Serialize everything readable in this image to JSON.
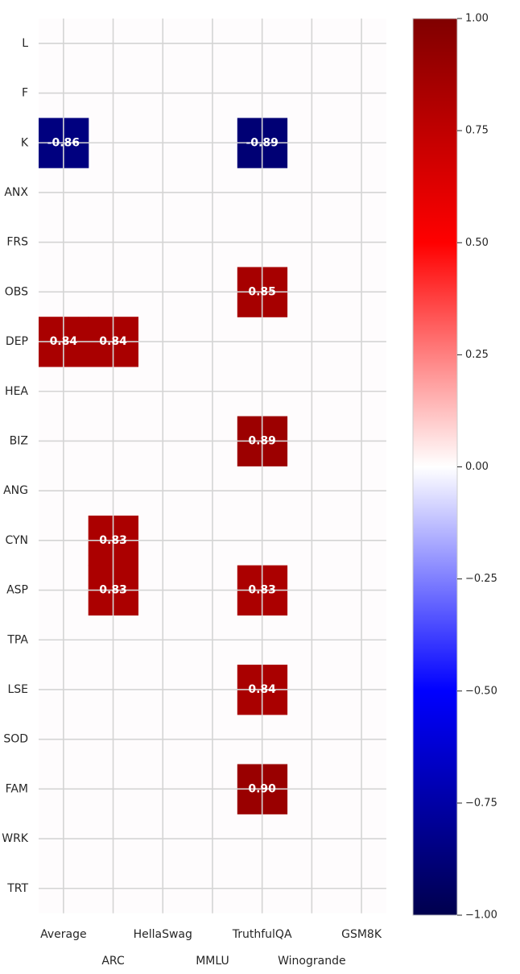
{
  "chart_data": {
    "type": "heatmap",
    "title": "",
    "xlabel": "",
    "ylabel": "",
    "x_categories": [
      "Average",
      "ARC",
      "HellaSwag",
      "MMLU",
      "TruthfulQA",
      "Winogrande",
      "GSM8K"
    ],
    "y_categories": [
      "L",
      "F",
      "K",
      "ANX",
      "FRS",
      "OBS",
      "DEP",
      "HEA",
      "BIZ",
      "ANG",
      "CYN",
      "ASP",
      "TPA",
      "LSE",
      "SOD",
      "FAM",
      "WRK",
      "TRT"
    ],
    "cells": [
      {
        "x": "Average",
        "y": "K",
        "value": -0.86,
        "label": "-0.86"
      },
      {
        "x": "TruthfulQA",
        "y": "K",
        "value": -0.89,
        "label": "-0.89"
      },
      {
        "x": "TruthfulQA",
        "y": "OBS",
        "value": 0.85,
        "label": "0.85"
      },
      {
        "x": "Average",
        "y": "DEP",
        "value": 0.84,
        "label": "0.84"
      },
      {
        "x": "ARC",
        "y": "DEP",
        "value": 0.84,
        "label": "0.84"
      },
      {
        "x": "TruthfulQA",
        "y": "BIZ",
        "value": 0.89,
        "label": "0.89"
      },
      {
        "x": "ARC",
        "y": "CYN",
        "value": 0.83,
        "label": "0.83"
      },
      {
        "x": "ARC",
        "y": "ASP",
        "value": 0.83,
        "label": "0.83"
      },
      {
        "x": "TruthfulQA",
        "y": "ASP",
        "value": 0.83,
        "label": "0.83"
      },
      {
        "x": "TruthfulQA",
        "y": "LSE",
        "value": 0.84,
        "label": "0.84"
      },
      {
        "x": "TruthfulQA",
        "y": "FAM",
        "value": 0.9,
        "label": "0.90"
      }
    ],
    "colorbar": {
      "colormap": "seismic",
      "vmin": -1.0,
      "vmax": 1.0,
      "ticks": [
        1.0,
        0.75,
        0.5,
        0.25,
        0.0,
        -0.25,
        -0.5,
        -0.75,
        -1.0
      ],
      "tick_labels": [
        "1.00",
        "0.75",
        "0.50",
        "0.25",
        "0.00",
        "−0.25",
        "−0.50",
        "−0.75",
        "−1.00"
      ]
    },
    "grid": true,
    "background_value": 0.0
  }
}
